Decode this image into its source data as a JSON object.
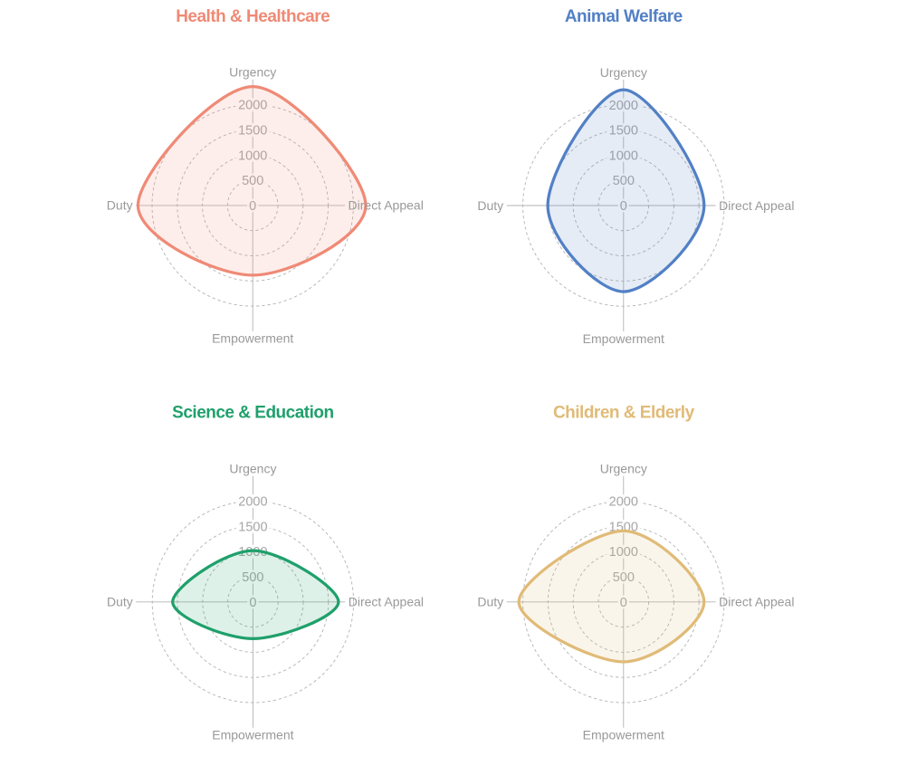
{
  "axis_labels": [
    "Urgency",
    "Direct Appeal",
    "Empowerment",
    "Duty"
  ],
  "tick_labels": [
    "0",
    "500",
    "1000",
    "1500",
    "2000"
  ],
  "tick_values": [
    0,
    500,
    1000,
    1500,
    2000
  ],
  "radial_max": 2500,
  "grid": {
    "spoke_color": "#b3b3b3",
    "circle_color": "#b3b3b3",
    "tick_text_color": "#a6a6a6",
    "point_label_color": "#999999"
  },
  "chart_data": [
    {
      "type": "radar",
      "title": "Health & Healthcare",
      "color": "#ef8a76",
      "axes": [
        "Urgency",
        "Direct Appeal",
        "Empowerment",
        "Duty"
      ],
      "values": [
        2360,
        2245,
        1385,
        2280
      ],
      "rlim": [
        0,
        2500
      ],
      "ticks": [
        0,
        500,
        1000,
        1500,
        2000
      ]
    },
    {
      "type": "radar",
      "title": "Animal Welfare",
      "color": "#5280c5",
      "axes": [
        "Urgency",
        "Direct Appeal",
        "Empowerment",
        "Duty"
      ],
      "values": [
        2300,
        1600,
        1710,
        1505
      ],
      "rlim": [
        0,
        2500
      ],
      "ticks": [
        0,
        500,
        1000,
        1500,
        2000
      ]
    },
    {
      "type": "radar",
      "title": "Science & Education",
      "color": "#1fa06b",
      "axes": [
        "Urgency",
        "Direct Appeal",
        "Empowerment",
        "Duty"
      ],
      "values": [
        1020,
        1700,
        730,
        1595
      ],
      "rlim": [
        0,
        2500
      ],
      "ticks": [
        0,
        500,
        1000,
        1500,
        2000
      ]
    },
    {
      "type": "radar",
      "title": "Children & Elderly",
      "color": "#e0bb77",
      "axes": [
        "Urgency",
        "Direct Appeal",
        "Empowerment",
        "Duty"
      ],
      "values": [
        1410,
        1600,
        1190,
        2080
      ],
      "rlim": [
        0,
        2500
      ],
      "ticks": [
        0,
        500,
        1000,
        1500,
        2000
      ]
    }
  ]
}
